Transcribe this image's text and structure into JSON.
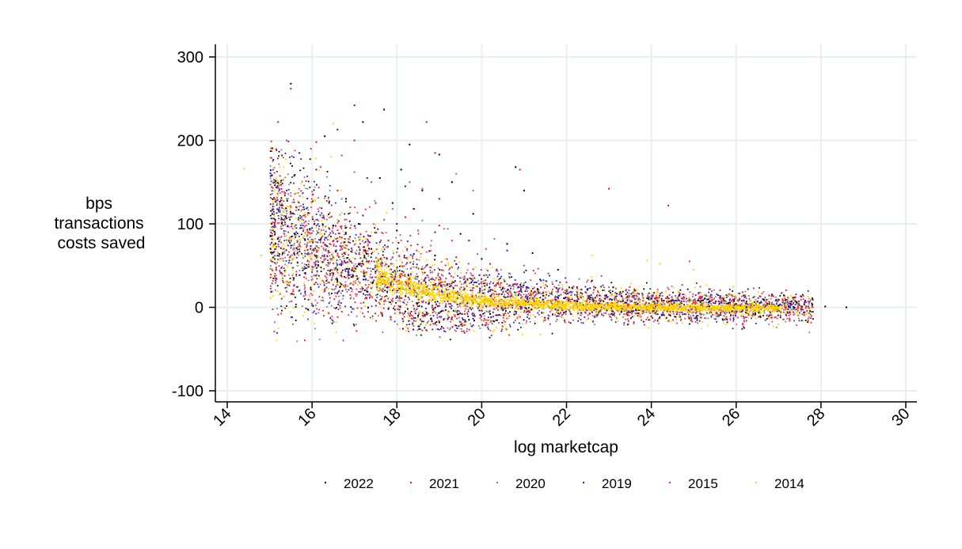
{
  "chart_data": {
    "type": "scatter",
    "title": "",
    "xlabel": "log marketcap",
    "ylabel_lines": [
      "bps",
      "transactions",
      "costs saved"
    ],
    "xlim": [
      14,
      30
    ],
    "ylim": [
      -100,
      300
    ],
    "x_ticks": [
      "14",
      "16",
      "18",
      "20",
      "22",
      "24",
      "26",
      "28",
      "30"
    ],
    "y_ticks": [
      "300",
      "200",
      "100",
      "0",
      "-100"
    ],
    "grid": true,
    "legend_position": "bottom",
    "series": [
      {
        "name": "2022",
        "color": "#000000",
        "points": [
          [
            15.5,
            268
          ],
          [
            17.7,
            237
          ],
          [
            17.2,
            222
          ],
          [
            16.3,
            205
          ],
          [
            18.3,
            195
          ],
          [
            19.0,
            183
          ],
          [
            18.1,
            165
          ],
          [
            17.6,
            155
          ],
          [
            19.3,
            150
          ],
          [
            18.6,
            140
          ],
          [
            20.8,
            168
          ],
          [
            21.0,
            140
          ],
          [
            16.8,
            130
          ],
          [
            17.9,
            125
          ],
          [
            18.4,
            118
          ],
          [
            19.8,
            112
          ],
          [
            17.1,
            100
          ],
          [
            16.5,
            98
          ],
          [
            18.0,
            92
          ],
          [
            19.5,
            88
          ],
          [
            20.6,
            76
          ],
          [
            21.2,
            65
          ],
          [
            17.4,
            70
          ],
          [
            18.9,
            62
          ],
          [
            20.0,
            58
          ],
          [
            21.8,
            45
          ],
          [
            22.6,
            32
          ],
          [
            23.1,
            24
          ],
          [
            24.2,
            14
          ],
          [
            25.1,
            8
          ],
          [
            26.0,
            4
          ],
          [
            27.0,
            2
          ],
          [
            28.1,
            1
          ],
          [
            28.6,
            0
          ],
          [
            18.5,
            -10
          ],
          [
            19.0,
            -18
          ],
          [
            19.4,
            -22
          ],
          [
            18.2,
            -5
          ],
          [
            20.2,
            -8
          ],
          [
            18.8,
            -14
          ],
          [
            19.7,
            -15
          ],
          [
            17.8,
            -2
          ]
        ]
      },
      {
        "name": "2021",
        "color": "#e3121f",
        "points": [
          [
            15.5,
            262
          ],
          [
            15.2,
            222
          ],
          [
            18.7,
            222
          ],
          [
            16.1,
            198
          ],
          [
            17.0,
            200
          ],
          [
            18.9,
            185
          ],
          [
            20.9,
            165
          ],
          [
            23.0,
            142
          ],
          [
            24.4,
            122
          ],
          [
            16.6,
            140
          ],
          [
            17.5,
            125
          ],
          [
            18.2,
            108
          ],
          [
            19.0,
            98
          ],
          [
            16.9,
            95
          ],
          [
            17.8,
            80
          ],
          [
            18.6,
            72
          ],
          [
            19.4,
            60
          ],
          [
            20.2,
            52
          ],
          [
            21.0,
            42
          ],
          [
            22.0,
            30
          ],
          [
            23.4,
            20
          ],
          [
            24.0,
            14
          ],
          [
            25.0,
            6
          ],
          [
            17.3,
            55
          ],
          [
            18.1,
            40
          ],
          [
            19.0,
            28
          ],
          [
            20.5,
            18
          ],
          [
            19.3,
            -12
          ],
          [
            18.9,
            -20
          ],
          [
            19.6,
            -8
          ],
          [
            18.4,
            -16
          ],
          [
            19.1,
            -25
          ],
          [
            20.0,
            -4
          ],
          [
            19.5,
            -18
          ],
          [
            18.7,
            -7
          ],
          [
            15.8,
            110
          ],
          [
            16.3,
            75
          ]
        ]
      },
      {
        "name": "2020",
        "color": "#7f7f7f",
        "points": [
          [
            17.0,
            162
          ],
          [
            19.4,
            160
          ],
          [
            18.3,
            150
          ],
          [
            19.8,
            140
          ],
          [
            16.7,
            130
          ],
          [
            17.9,
            118
          ],
          [
            18.6,
            104
          ],
          [
            19.2,
            94
          ],
          [
            20.3,
            82
          ],
          [
            17.5,
            90
          ],
          [
            18.8,
            74
          ],
          [
            19.9,
            64
          ],
          [
            21.0,
            50
          ],
          [
            22.3,
            34
          ],
          [
            23.0,
            24
          ],
          [
            24.0,
            14
          ],
          [
            25.3,
            6
          ],
          [
            16.2,
            110
          ],
          [
            17.1,
            84
          ],
          [
            18.0,
            66
          ],
          [
            19.3,
            48
          ],
          [
            20.6,
            28
          ],
          [
            19.0,
            -6
          ],
          [
            18.5,
            -12
          ],
          [
            20.1,
            -20
          ]
        ]
      },
      {
        "name": "2019",
        "color": "#1b1bd6",
        "points": [
          [
            17.0,
            242
          ],
          [
            16.6,
            213
          ],
          [
            15.7,
            185
          ],
          [
            16.1,
            165
          ],
          [
            17.3,
            155
          ],
          [
            18.2,
            145
          ],
          [
            19.0,
            130
          ],
          [
            16.4,
            125
          ],
          [
            17.2,
            110
          ],
          [
            18.0,
            100
          ],
          [
            18.9,
            90
          ],
          [
            19.7,
            80
          ],
          [
            20.6,
            68
          ],
          [
            16.8,
            88
          ],
          [
            17.6,
            78
          ],
          [
            18.4,
            64
          ],
          [
            19.4,
            52
          ],
          [
            20.4,
            40
          ],
          [
            21.4,
            32
          ],
          [
            22.5,
            22
          ],
          [
            23.6,
            14
          ],
          [
            24.6,
            8
          ],
          [
            25.6,
            4
          ],
          [
            26.7,
            2
          ],
          [
            27.7,
            1
          ],
          [
            15.4,
            140
          ],
          [
            15.8,
            120
          ],
          [
            16.0,
            95
          ],
          [
            18.7,
            -6
          ],
          [
            19.2,
            -14
          ],
          [
            19.8,
            -10
          ],
          [
            22.1,
            -8
          ]
        ]
      },
      {
        "name": "2015",
        "color": "#ff2d55",
        "points": [
          [
            15.4,
            200
          ],
          [
            16.7,
            182
          ],
          [
            16.2,
            168
          ],
          [
            17.4,
            150
          ],
          [
            18.6,
            142
          ],
          [
            16.9,
            120
          ],
          [
            17.7,
            105
          ],
          [
            18.5,
            92
          ],
          [
            19.3,
            80
          ],
          [
            20.1,
            70
          ],
          [
            17.0,
            75
          ],
          [
            17.9,
            60
          ],
          [
            18.8,
            48
          ],
          [
            19.8,
            38
          ],
          [
            20.8,
            28
          ],
          [
            21.8,
            20
          ],
          [
            22.8,
            14
          ],
          [
            23.8,
            8
          ],
          [
            24.9,
            55
          ],
          [
            25.0,
            5
          ],
          [
            26.1,
            3
          ],
          [
            15.3,
            40
          ],
          [
            15.9,
            90
          ],
          [
            16.5,
            60
          ],
          [
            19.1,
            -4
          ],
          [
            18.6,
            -10
          ],
          [
            20.3,
            -2
          ]
        ]
      },
      {
        "name": "2014",
        "color": "#ffd400",
        "points": [
          [
            14.4,
            166
          ],
          [
            16.5,
            220
          ],
          [
            15.1,
            110
          ],
          [
            15.6,
            95
          ],
          [
            16.0,
            80
          ],
          [
            16.4,
            72
          ],
          [
            16.8,
            66
          ],
          [
            17.2,
            58
          ],
          [
            17.6,
            50
          ],
          [
            18.0,
            42
          ],
          [
            18.4,
            36
          ],
          [
            18.8,
            30
          ],
          [
            19.2,
            24
          ],
          [
            19.6,
            20
          ],
          [
            20.0,
            16
          ],
          [
            20.4,
            13
          ],
          [
            20.8,
            11
          ],
          [
            21.2,
            9
          ],
          [
            21.6,
            7
          ],
          [
            22.0,
            6
          ],
          [
            22.5,
            5
          ],
          [
            23.0,
            4
          ],
          [
            23.5,
            3
          ],
          [
            24.0,
            2
          ],
          [
            24.5,
            2
          ],
          [
            25.0,
            1
          ],
          [
            25.5,
            1
          ],
          [
            26.0,
            1
          ],
          [
            26.5,
            0
          ],
          [
            27.0,
            0
          ],
          [
            23.9,
            56
          ],
          [
            24.2,
            52
          ],
          [
            25.0,
            45
          ],
          [
            22.6,
            62
          ],
          [
            14.8,
            62
          ],
          [
            15.4,
            30
          ],
          [
            16.2,
            55
          ],
          [
            17.0,
            45
          ],
          [
            17.8,
            35
          ],
          [
            18.6,
            20
          ],
          [
            19.4,
            10
          ],
          [
            20.2,
            5
          ],
          [
            18.2,
            72
          ],
          [
            17.4,
            90
          ],
          [
            16.6,
            105
          ]
        ]
      }
    ]
  }
}
